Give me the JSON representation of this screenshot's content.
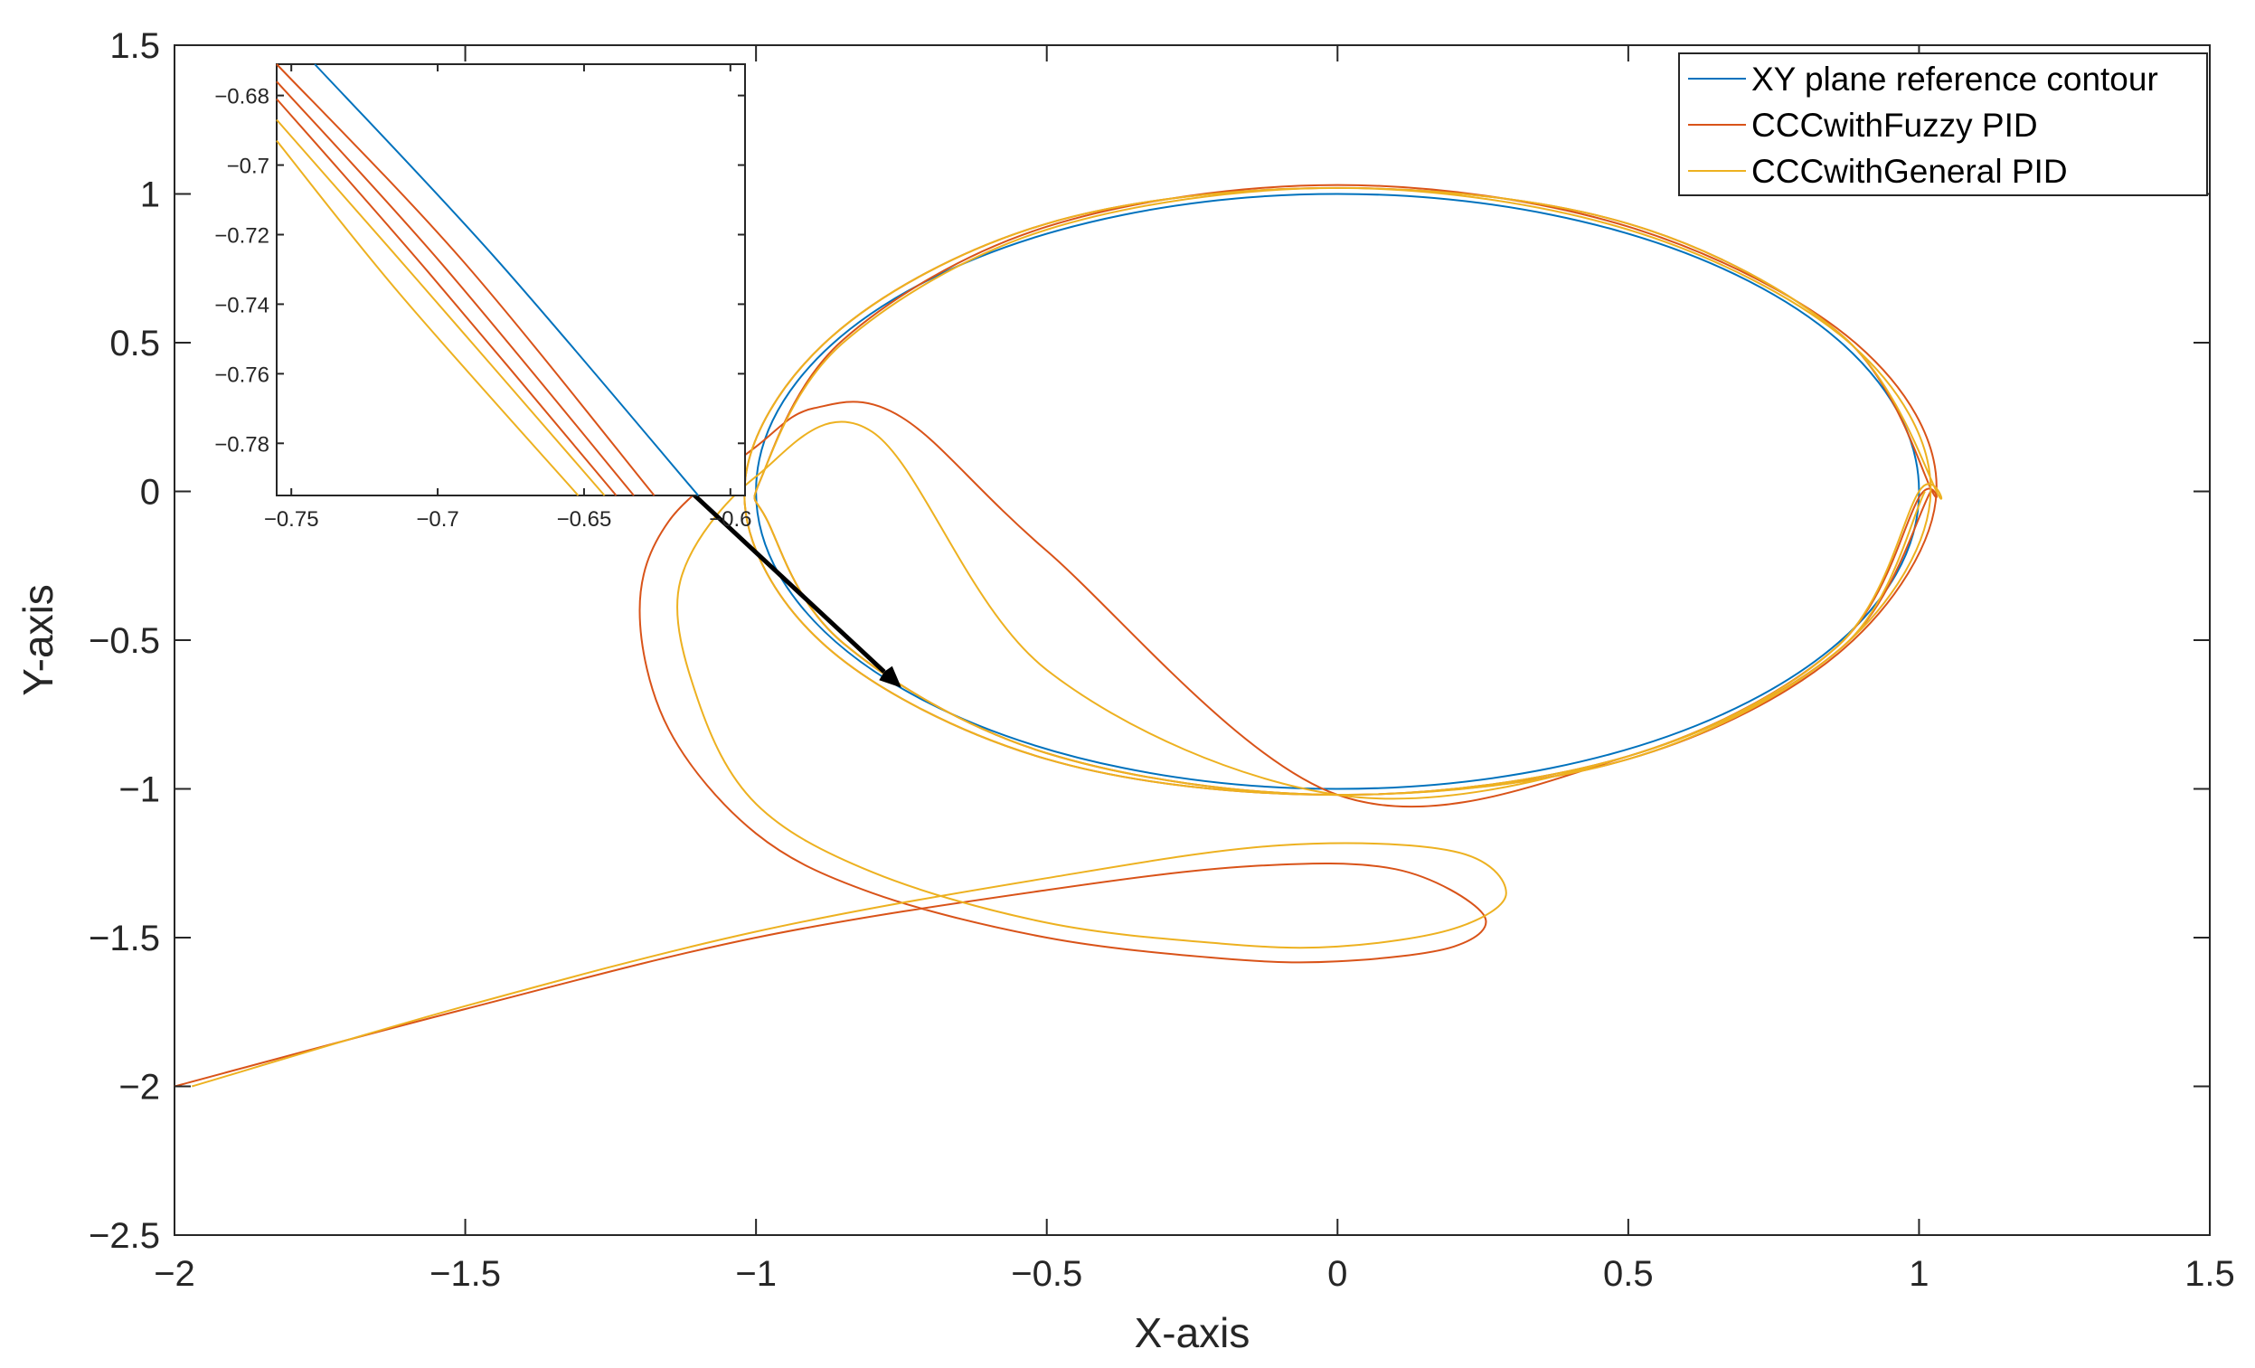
{
  "chart_data": [
    {
      "type": "line",
      "role": "main",
      "xlabel": "X-axis",
      "ylabel": "Y-axis",
      "xlim": [
        -2,
        1.5
      ],
      "ylim": [
        -2.5,
        1.5
      ],
      "xticks": [
        -2,
        -1.5,
        -1,
        -0.5,
        0,
        0.5,
        1,
        1.5
      ],
      "xtick_labels": [
        "−2",
        "−1.5",
        "−1",
        "−0.5",
        "0",
        "0.5",
        "1",
        "1.5"
      ],
      "yticks": [
        -2.5,
        -2,
        -1.5,
        -1,
        -0.5,
        0,
        0.5,
        1,
        1.5
      ],
      "ytick_labels": [
        "−2.5",
        "−2",
        "−1.5",
        "−1",
        "−0.5",
        "0",
        "0.5",
        "1",
        "1.5"
      ],
      "grid": false,
      "legend_position": "top-right",
      "series": [
        {
          "name": "XY plane reference contour",
          "color": "#0072BD",
          "x": [
            1.0,
            0.866,
            0.5,
            0.0,
            -0.5,
            -0.866,
            -1.0,
            -0.866,
            -0.5,
            0.0,
            0.5,
            0.866,
            1.0
          ],
          "y": [
            0.0,
            0.5,
            0.866,
            1.0,
            0.866,
            0.5,
            0.0,
            -0.5,
            -0.866,
            -1.0,
            -0.866,
            -0.5,
            0.0
          ]
        },
        {
          "name": "CCCwithFuzzy PID",
          "color": "#D95319",
          "x": [
            -2.0,
            -1.5,
            -1.0,
            -0.5,
            -0.15,
            0.1,
            0.25,
            0.2,
            0.0,
            -0.2,
            -0.5,
            -0.8,
            -1.0,
            -1.15,
            -1.2,
            -1.15,
            -1.0,
            -0.9,
            -0.75,
            -0.5,
            0.0,
            0.5,
            0.86,
            1.0,
            1.02,
            0.87,
            0.5,
            0.0,
            -0.5,
            -0.87,
            -1.02,
            -0.88,
            -0.5,
            0.0,
            0.5,
            0.87,
            1.03,
            0.89,
            0.5,
            0.0,
            -0.5,
            -0.85,
            -0.99,
            -0.98,
            -0.85,
            -0.5,
            0.0,
            0.5,
            0.87,
            1.02
          ],
          "y": [
            -2.0,
            -1.74,
            -1.5,
            -1.34,
            -1.26,
            -1.27,
            -1.42,
            -1.53,
            -1.58,
            -1.57,
            -1.5,
            -1.35,
            -1.15,
            -0.8,
            -0.4,
            -0.1,
            0.15,
            0.28,
            0.25,
            -0.2,
            -1.02,
            -0.89,
            -0.52,
            -0.02,
            0.01,
            0.52,
            0.9,
            1.02,
            0.9,
            0.52,
            0.0,
            -0.52,
            -0.9,
            -1.02,
            -0.9,
            -0.53,
            0.0,
            0.5,
            0.89,
            1.03,
            0.89,
            0.51,
            0.05,
            -0.1,
            -0.51,
            -0.88,
            -1.02,
            -0.89,
            -0.52,
            0.0
          ]
        },
        {
          "name": "CCCwithGeneral PID",
          "color": "#EDB120",
          "x": [
            -1.97,
            -1.5,
            -1.0,
            -0.5,
            -0.1,
            0.2,
            0.29,
            0.2,
            0.0,
            -0.2,
            -0.5,
            -0.8,
            -1.0,
            -1.1,
            -1.13,
            -1.0,
            -0.8,
            -0.5,
            0.0,
            0.5,
            0.86,
            1.0,
            1.03,
            0.87,
            0.5,
            0.0,
            -0.5,
            -0.87,
            -1.02,
            -0.88,
            -0.5,
            0.0,
            0.5,
            0.87,
            1.02,
            0.88,
            0.5,
            0.0,
            -0.5,
            -0.85,
            -0.99,
            -0.98,
            -0.85,
            -0.5,
            0.0,
            0.5,
            0.87,
            1.01
          ],
          "y": [
            -2.0,
            -1.73,
            -1.48,
            -1.3,
            -1.19,
            -1.21,
            -1.35,
            -1.47,
            -1.53,
            -1.52,
            -1.45,
            -1.28,
            -1.05,
            -0.7,
            -0.3,
            0.05,
            0.2,
            -0.6,
            -1.02,
            -0.89,
            -0.52,
            0.0,
            0.0,
            0.52,
            0.9,
            1.02,
            0.9,
            0.52,
            0.0,
            -0.52,
            -0.9,
            -1.02,
            -0.9,
            -0.52,
            0.0,
            0.5,
            0.88,
            1.02,
            0.88,
            0.5,
            0.05,
            -0.1,
            -0.51,
            -0.88,
            -1.02,
            -0.89,
            -0.52,
            0.0
          ]
        }
      ],
      "annotation": {
        "type": "arrow",
        "from": [
          -1.19,
          0.14
        ],
        "to": [
          -0.75,
          -0.66
        ],
        "color": "#000000"
      }
    },
    {
      "type": "line",
      "role": "inset",
      "position": "top-left",
      "xlim": [
        -0.755,
        -0.595
      ],
      "ylim": [
        -0.795,
        -0.671
      ],
      "xticks": [
        -0.75,
        -0.7,
        -0.65,
        -0.6
      ],
      "xtick_labels": [
        "−0.75",
        "−0.7",
        "−0.65",
        "−0.6"
      ],
      "yticks": [
        -0.78,
        -0.76,
        -0.74,
        -0.72,
        -0.7,
        -0.68
      ],
      "ytick_labels": [
        "−0.78",
        "−0.76",
        "−0.74",
        "−0.72",
        "−0.7",
        "−0.68"
      ],
      "series": [
        {
          "name": "XY plane reference contour",
          "color": "#0072BD",
          "x": [
            -0.742,
            -0.68,
            -0.611
          ],
          "y": [
            -0.671,
            -0.727,
            -0.795
          ]
        },
        {
          "name": "CCCwithFuzzy PID",
          "color": "#D95319",
          "x": [
            -0.755,
            -0.692,
            -0.626
          ],
          "y": [
            -0.671,
            -0.727,
            -0.795
          ]
        },
        {
          "name": "CCCwithFuzzy PID",
          "color": "#D95319",
          "x": [
            -0.755,
            -0.699,
            -0.633
          ],
          "y": [
            -0.676,
            -0.728,
            -0.795
          ]
        },
        {
          "name": "CCCwithFuzzy PID",
          "color": "#D95319",
          "x": [
            -0.755,
            -0.703,
            -0.639
          ],
          "y": [
            -0.681,
            -0.731,
            -0.795
          ]
        },
        {
          "name": "CCCwithGeneral PID",
          "color": "#EDB120",
          "x": [
            -0.755,
            -0.707,
            -0.643
          ],
          "y": [
            -0.687,
            -0.733,
            -0.795
          ]
        },
        {
          "name": "CCCwithGeneral PID",
          "color": "#EDB120",
          "x": [
            -0.755,
            -0.713,
            -0.652
          ],
          "y": [
            -0.693,
            -0.737,
            -0.795
          ]
        }
      ]
    }
  ]
}
